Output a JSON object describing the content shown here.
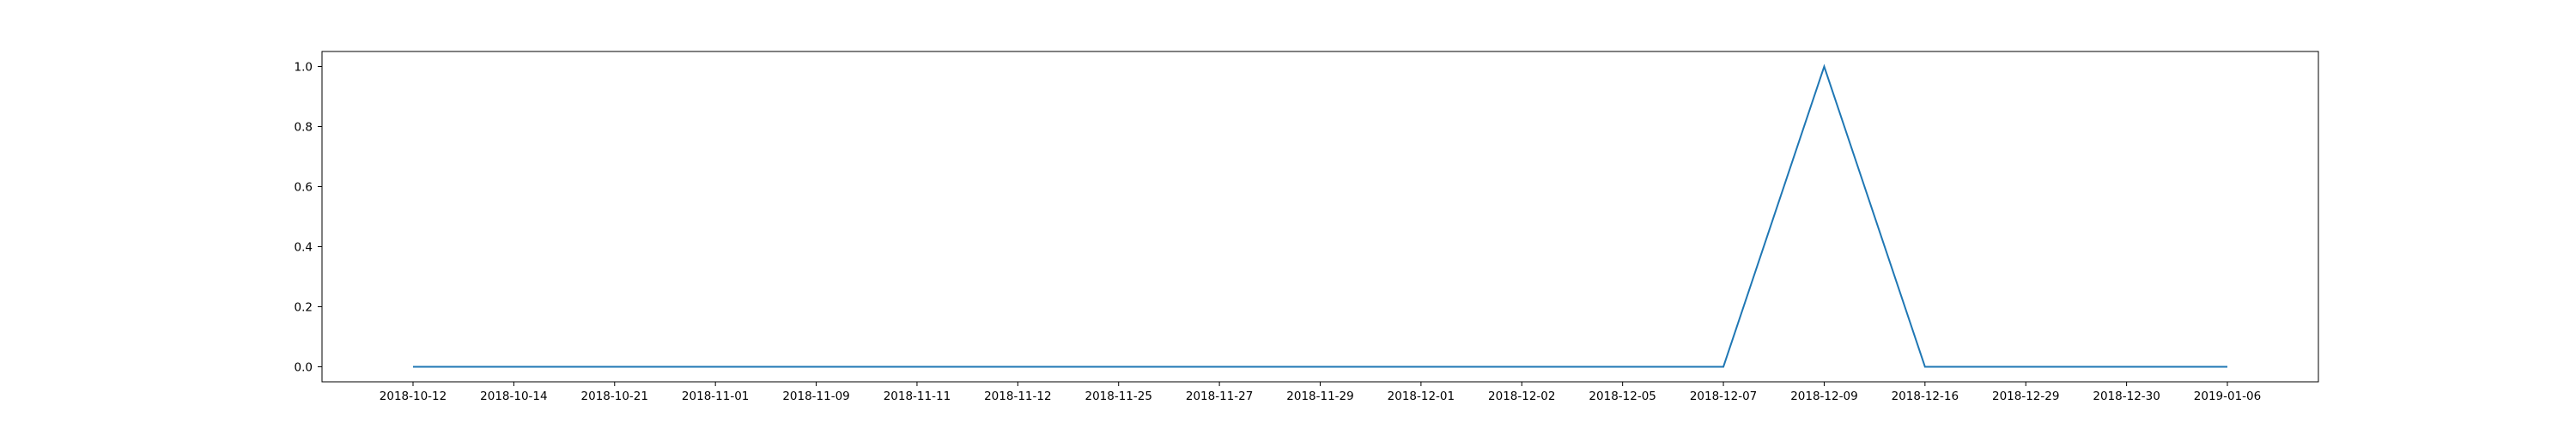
{
  "chart_data": {
    "type": "line",
    "title": "",
    "xlabel": "",
    "ylabel": "",
    "x": [
      "2018-10-12",
      "2018-10-14",
      "2018-10-21",
      "2018-11-01",
      "2018-11-09",
      "2018-11-11",
      "2018-11-12",
      "2018-11-25",
      "2018-11-27",
      "2018-11-29",
      "2018-12-01",
      "2018-12-02",
      "2018-12-05",
      "2018-12-07",
      "2018-12-09",
      "2018-12-16",
      "2018-12-29",
      "2018-12-30",
      "2019-01-06"
    ],
    "series": [
      {
        "color": "#1f77b4",
        "values": [
          0,
          0,
          0,
          0,
          0,
          0,
          0,
          0,
          0,
          0,
          0,
          0,
          0,
          0,
          1,
          0,
          0,
          0,
          0
        ]
      }
    ],
    "yticks": [
      "0.0",
      "0.2",
      "0.4",
      "0.6",
      "0.8",
      "1.0"
    ],
    "ylim": [
      -0.05,
      1.05
    ],
    "grid": false,
    "legend": "none"
  }
}
